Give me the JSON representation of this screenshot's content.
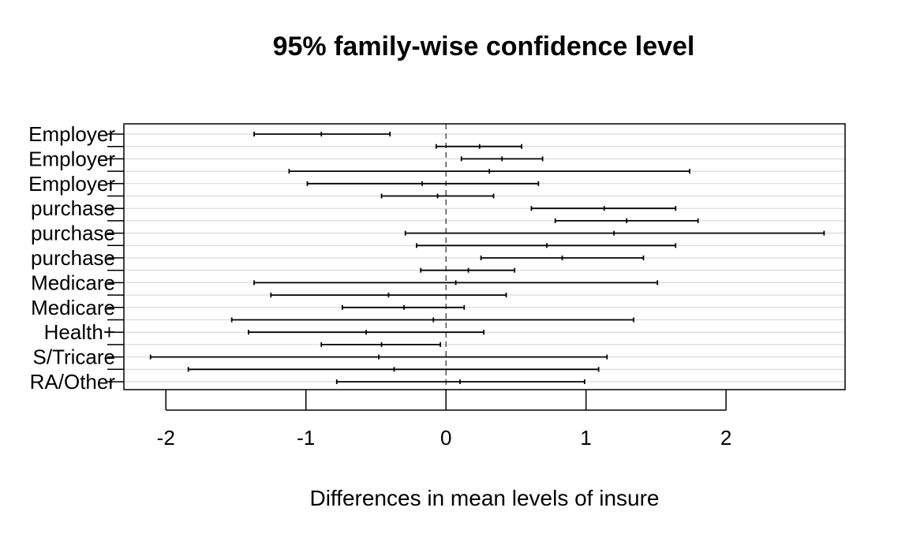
{
  "chart_data": {
    "type": "errorbar",
    "title": "95% family-wise confidence level",
    "xlabel": "Differences in mean levels of insure",
    "x_ticks": [
      "-2",
      "-1",
      "0",
      "1",
      "2"
    ],
    "x_tick_values": [
      -2,
      -1,
      0,
      1,
      2
    ],
    "xlim": [
      -2.3,
      2.85
    ],
    "reference_line": 0,
    "grid": "horizontal",
    "visible_row_labels": [
      "Employer",
      "Employer",
      "Employer",
      "purchase",
      "purchase",
      "purchase",
      "Medicare",
      "Medicare",
      "Health+",
      "S/Tricare",
      "RA/Other"
    ],
    "intervals": [
      {
        "lwr": -1.37,
        "mean": -0.89,
        "upr": -0.4
      },
      {
        "lwr": -0.07,
        "mean": 0.24,
        "upr": 0.54
      },
      {
        "lwr": 0.11,
        "mean": 0.4,
        "upr": 0.69
      },
      {
        "lwr": -1.12,
        "mean": 0.31,
        "upr": 1.74
      },
      {
        "lwr": -0.99,
        "mean": -0.17,
        "upr": 0.66
      },
      {
        "lwr": -0.46,
        "mean": -0.06,
        "upr": 0.34
      },
      {
        "lwr": 0.61,
        "mean": 1.13,
        "upr": 1.64
      },
      {
        "lwr": 0.78,
        "mean": 1.29,
        "upr": 1.8
      },
      {
        "lwr": -0.29,
        "mean": 1.2,
        "upr": 2.7
      },
      {
        "lwr": -0.21,
        "mean": 0.72,
        "upr": 1.64
      },
      {
        "lwr": 0.25,
        "mean": 0.83,
        "upr": 1.41
      },
      {
        "lwr": -0.18,
        "mean": 0.16,
        "upr": 0.49
      },
      {
        "lwr": -1.37,
        "mean": 0.07,
        "upr": 1.51
      },
      {
        "lwr": -1.25,
        "mean": -0.41,
        "upr": 0.43
      },
      {
        "lwr": -0.74,
        "mean": -0.3,
        "upr": 0.13
      },
      {
        "lwr": -1.53,
        "mean": -0.09,
        "upr": 1.34
      },
      {
        "lwr": -1.41,
        "mean": -0.57,
        "upr": 0.27
      },
      {
        "lwr": -0.89,
        "mean": -0.46,
        "upr": -0.04
      },
      {
        "lwr": -2.11,
        "mean": -0.48,
        "upr": 1.15
      },
      {
        "lwr": -1.84,
        "mean": -0.37,
        "upr": 1.09
      },
      {
        "lwr": -0.78,
        "mean": 0.1,
        "upr": 0.99
      }
    ]
  },
  "colors": {
    "line": "#000000",
    "grid": "#d3d3d3",
    "background": "#ffffff"
  }
}
